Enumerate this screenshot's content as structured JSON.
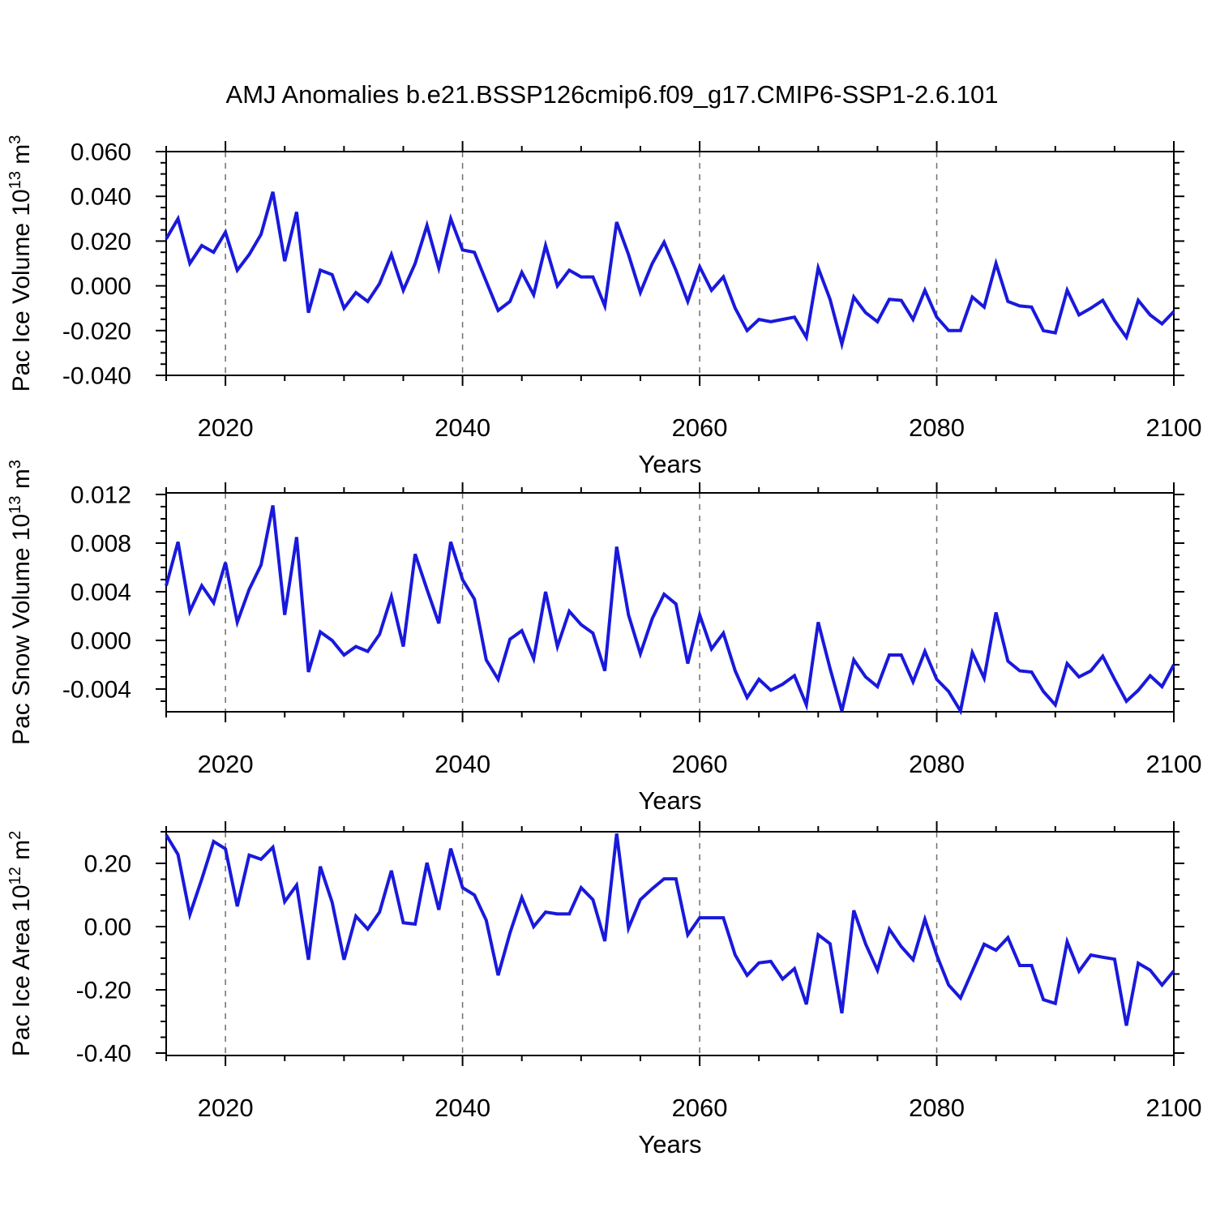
{
  "title": "AMJ Anomalies b.e21.BSSP126cmip6.f09_g17.CMIP6-SSP1-2.6.101",
  "chart_data": {
    "type": "line",
    "series_color": "#1919dc",
    "grid": {
      "vertical_dashed_at_major_x": true,
      "color": "#707070"
    },
    "xlabel": "Years",
    "x_axis": {
      "min": 2015,
      "max": 2100,
      "major_ticks": [
        {
          "v": 2020,
          "label": "2020"
        },
        {
          "v": 2040,
          "label": "2040"
        },
        {
          "v": 2060,
          "label": "2060"
        },
        {
          "v": 2080,
          "label": "2080"
        },
        {
          "v": 2100,
          "label": "2100"
        }
      ],
      "minor_step": 5
    },
    "years": [
      2015,
      2016,
      2017,
      2018,
      2019,
      2020,
      2021,
      2022,
      2023,
      2024,
      2025,
      2026,
      2027,
      2028,
      2029,
      2030,
      2031,
      2032,
      2033,
      2034,
      2035,
      2036,
      2037,
      2038,
      2039,
      2040,
      2041,
      2042,
      2043,
      2044,
      2045,
      2046,
      2047,
      2048,
      2049,
      2050,
      2051,
      2052,
      2053,
      2054,
      2055,
      2056,
      2057,
      2058,
      2059,
      2060,
      2061,
      2062,
      2063,
      2064,
      2065,
      2066,
      2067,
      2068,
      2069,
      2070,
      2071,
      2072,
      2073,
      2074,
      2075,
      2076,
      2077,
      2078,
      2079,
      2080,
      2081,
      2082,
      2083,
      2084,
      2085,
      2086,
      2087,
      2088,
      2089,
      2090,
      2091,
      2092,
      2093,
      2094,
      2095,
      2096,
      2097,
      2098,
      2099,
      2100
    ],
    "panels": [
      {
        "name": "pac-ice-volume",
        "ylabel_plain": "Pac Ice Volume 10^13 m^3",
        "ylabel_parts": [
          {
            "t": "Pac Ice Volume 10"
          },
          {
            "t": "13",
            "sup": true
          },
          {
            "t": " m"
          },
          {
            "t": "3",
            "sup": true
          }
        ],
        "ylim": [
          -0.04,
          0.06
        ],
        "y_minor_step": 0.005,
        "yticks": [
          {
            "v": 0.06,
            "label": "0.060"
          },
          {
            "v": 0.04,
            "label": "0.040"
          },
          {
            "v": 0.02,
            "label": "0.020"
          },
          {
            "v": 0.0,
            "label": "0.000"
          },
          {
            "v": -0.02,
            "label": "-0.020"
          },
          {
            "v": -0.04,
            "label": "-0.040"
          }
        ],
        "values": [
          0.021,
          0.03,
          0.01,
          0.018,
          0.015,
          0.024,
          0.007,
          0.014,
          0.023,
          0.042,
          0.011,
          0.033,
          -0.012,
          0.007,
          0.005,
          -0.01,
          -0.003,
          -0.007,
          0.001,
          0.014,
          -0.002,
          0.01,
          0.027,
          0.008,
          0.03,
          0.016,
          0.015,
          0.002,
          -0.011,
          -0.007,
          0.006,
          -0.004,
          0.018,
          0.0,
          0.007,
          0.004,
          0.004,
          -0.009,
          0.0285,
          0.014,
          -0.003,
          0.01,
          0.0195,
          0.007,
          -0.007,
          0.0085,
          -0.002,
          0.004,
          -0.01,
          -0.02,
          -0.015,
          -0.016,
          -0.015,
          -0.014,
          -0.023,
          0.008,
          -0.006,
          -0.026,
          -0.005,
          -0.012,
          -0.016,
          -0.006,
          -0.0065,
          -0.015,
          -0.002,
          -0.014,
          -0.02,
          -0.02,
          -0.005,
          -0.0095,
          0.01,
          -0.007,
          -0.009,
          -0.0095,
          -0.02,
          -0.021,
          -0.002,
          -0.013,
          -0.01,
          -0.0065,
          -0.0155,
          -0.023,
          -0.0065,
          -0.013,
          -0.017,
          -0.0115
        ]
      },
      {
        "name": "pac-snow-volume",
        "ylabel_plain": "Pac Snow Volume 10^13 m^3",
        "ylabel_parts": [
          {
            "t": "Pac Snow Volume 10"
          },
          {
            "t": "13",
            "sup": true
          },
          {
            "t": " m"
          },
          {
            "t": "3",
            "sup": true
          }
        ],
        "ylim": [
          -0.00587,
          0.01213
        ],
        "y_minor_step": 0.001,
        "yticks": [
          {
            "v": 0.012,
            "label": "0.012"
          },
          {
            "v": 0.008,
            "label": "0.008"
          },
          {
            "v": 0.004,
            "label": "0.004"
          },
          {
            "v": 0.0,
            "label": "0.000"
          },
          {
            "v": -0.004,
            "label": "-0.004"
          }
        ],
        "values": [
          0.0045,
          0.0081,
          0.0024,
          0.0045,
          0.0031,
          0.0064,
          0.0015,
          0.0042,
          0.0062,
          0.0111,
          0.0021,
          0.0085,
          -0.0026,
          0.0007,
          0.0,
          -0.0012,
          -0.0005,
          -0.0009,
          0.0005,
          0.0036,
          -0.0005,
          0.0071,
          0.0042,
          0.0014,
          0.0081,
          0.005,
          0.0034,
          -0.0016,
          -0.0032,
          0.0001,
          0.0008,
          -0.0015,
          0.004,
          -0.0005,
          0.0024,
          0.0013,
          0.0006,
          -0.0025,
          0.0077,
          0.0021,
          -0.0011,
          0.0018,
          0.0038,
          0.003,
          -0.0019,
          0.0021,
          -0.0007,
          0.0006,
          -0.0025,
          -0.0047,
          -0.0032,
          -0.0041,
          -0.0036,
          -0.0029,
          -0.0053,
          0.0015,
          -0.0023,
          -0.0058,
          -0.0016,
          -0.003,
          -0.0038,
          -0.0012,
          -0.0012,
          -0.0034,
          -0.0009,
          -0.0032,
          -0.0042,
          -0.0058,
          -0.001,
          -0.0031,
          0.0023,
          -0.0017,
          -0.0025,
          -0.0026,
          -0.0042,
          -0.0053,
          -0.0019,
          -0.003,
          -0.0025,
          -0.0013,
          -0.0032,
          -0.005,
          -0.0041,
          -0.0029,
          -0.0038,
          -0.002
        ]
      },
      {
        "name": "pac-ice-area",
        "ylabel_plain": "Pac Ice Area 10^12 m^2",
        "ylabel_parts": [
          {
            "t": "Pac Ice Area 10"
          },
          {
            "t": "12",
            "sup": true
          },
          {
            "t": " m"
          },
          {
            "t": "2",
            "sup": true
          }
        ],
        "ylim": [
          -0.4077,
          0.3
        ],
        "y_minor_step": 0.05,
        "yticks": [
          {
            "v": 0.2,
            "label": "0.20"
          },
          {
            "v": 0.0,
            "label": "0.00"
          },
          {
            "v": -0.2,
            "label": "-0.20"
          },
          {
            "v": -0.4,
            "label": "-0.40"
          }
        ],
        "values": [
          0.29,
          0.228,
          0.038,
          0.15,
          0.269,
          0.246,
          0.064,
          0.226,
          0.213,
          0.251,
          0.079,
          0.131,
          -0.105,
          0.19,
          0.077,
          -0.105,
          0.033,
          -0.008,
          0.046,
          0.177,
          0.012,
          0.008,
          0.202,
          0.053,
          0.247,
          0.123,
          0.1,
          0.02,
          -0.154,
          -0.02,
          0.092,
          0.0,
          0.046,
          0.04,
          0.04,
          0.123,
          0.085,
          -0.046,
          0.294,
          -0.005,
          0.085,
          0.12,
          0.151,
          0.151,
          -0.026,
          0.028,
          0.028,
          0.028,
          -0.09,
          -0.154,
          -0.115,
          -0.11,
          -0.166,
          -0.133,
          -0.246,
          -0.026,
          -0.054,
          -0.274,
          0.051,
          -0.055,
          -0.138,
          -0.008,
          -0.063,
          -0.105,
          0.023,
          -0.09,
          -0.185,
          -0.226,
          -0.141,
          -0.056,
          -0.075,
          -0.035,
          -0.123,
          -0.123,
          -0.231,
          -0.243,
          -0.048,
          -0.141,
          -0.09,
          -0.097,
          -0.103,
          -0.313,
          -0.116,
          -0.138,
          -0.185,
          -0.14
        ]
      }
    ]
  }
}
